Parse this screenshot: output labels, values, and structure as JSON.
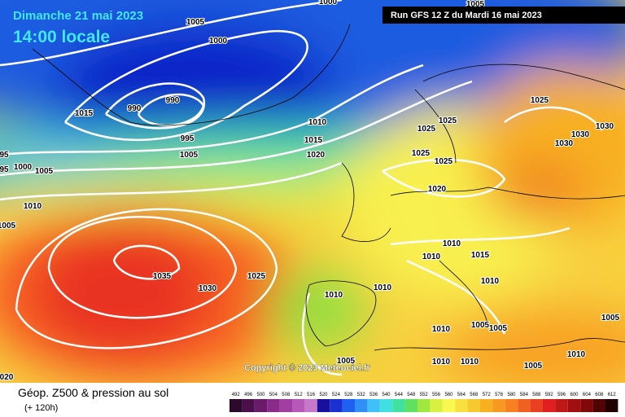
{
  "header": {
    "date": "Dimanche 21 mai 2023",
    "time": "14:00 locale",
    "run": "Run GFS 12 Z du Mardi 16 mai 2023"
  },
  "copyright": "Copyright © 2023 Meteociel.fr",
  "footer": {
    "title": "Géop. Z500 & pression au sol",
    "lead": "(+ 120h)"
  },
  "legend": {
    "values": [
      492,
      496,
      500,
      504,
      508,
      512,
      516,
      520,
      524,
      528,
      532,
      536,
      540,
      544,
      548,
      552,
      556,
      560,
      564,
      568,
      572,
      576,
      580,
      584,
      588,
      592,
      596,
      600,
      604,
      608,
      612
    ],
    "colors": [
      "#2b0a2b",
      "#4b0f4b",
      "#6b1a6b",
      "#8a2a8a",
      "#a23ea2",
      "#b858b8",
      "#c878c8",
      "#1a10a0",
      "#1a30d0",
      "#2060f0",
      "#3090f8",
      "#40c0f8",
      "#40e0e0",
      "#40e0a0",
      "#60e060",
      "#a0e840",
      "#d8f040",
      "#f8f850",
      "#f8e040",
      "#f8c830",
      "#f8b020",
      "#f89820",
      "#f88020",
      "#f06020",
      "#e84020",
      "#e02020",
      "#c01818",
      "#a01010",
      "#800808",
      "#500404",
      "#200000"
    ]
  },
  "isobar_labels": [
    "1005",
    "1000",
    "990",
    "990",
    "995",
    "1005",
    "1015",
    "1010",
    "1015",
    "1020",
    "1000",
    "1005",
    "1010",
    "1005",
    "1035",
    "1030",
    "1025",
    "1010",
    "1010",
    "1025",
    "1025",
    "1025",
    "1030",
    "1030",
    "1030",
    "1025",
    "1025",
    "1020",
    "1010",
    "1010",
    "1015",
    "1010",
    "1005",
    "1005",
    "1010",
    "1010",
    "1010",
    "1005",
    "1005",
    "1010",
    "1005",
    "1005",
    "1000",
    "95",
    "95",
    "020"
  ]
}
